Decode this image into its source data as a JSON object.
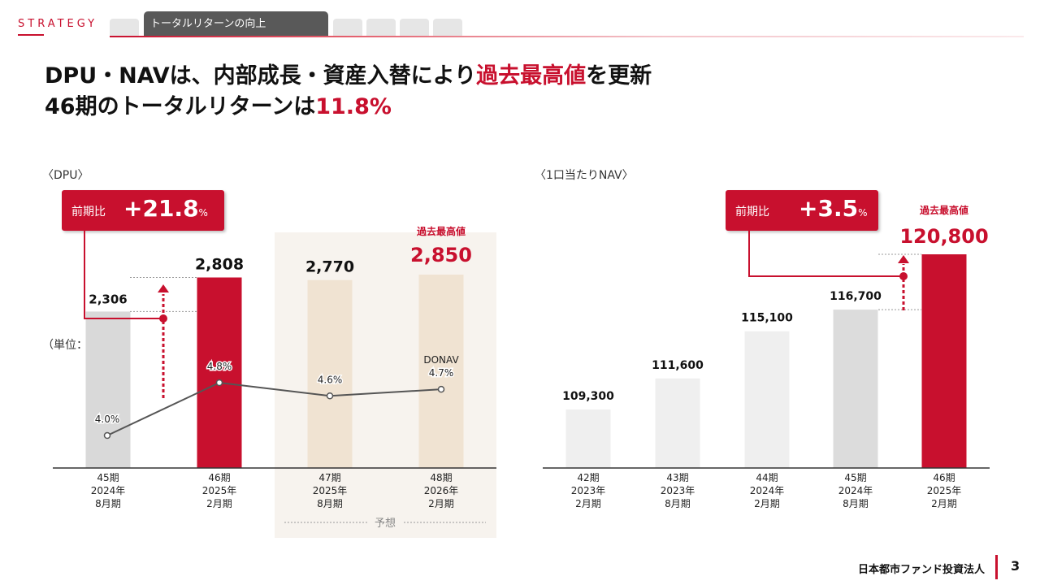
{
  "header": {
    "section": "STRATEGY",
    "active_tab": "トータルリターンの向上"
  },
  "headline": {
    "line1_a": "DPU・NAVは、内部成長・資産入替により",
    "line1_b": "過去最高値",
    "line1_c": "を更新",
    "line2_a": "46期のトータルリターンは",
    "line2_b": "11.8%"
  },
  "dpu_section": {
    "label": "〈DPU〉",
    "unit": "（単位：円）",
    "callout_label": "前期比",
    "callout_value": "+21.8",
    "callout_pct": "%",
    "record_label": "過去最高値",
    "forecast_label": "予想",
    "donav_label": "DONAV"
  },
  "nav_section": {
    "label": "〈1口当たりNAV〉",
    "callout_label": "前期比",
    "callout_value": "+3.5",
    "callout_pct": "%",
    "record_label": "過去最高値"
  },
  "chart_data": [
    {
      "type": "bar",
      "title": "〈DPU〉",
      "unit": "（単位：円）",
      "categories": [
        [
          "45期",
          "2024年",
          "8月期"
        ],
        [
          "46期",
          "2025年",
          "2月期"
        ],
        [
          "47期",
          "2025年",
          "8月期"
        ],
        [
          "48期",
          "2026年",
          "2月期"
        ]
      ],
      "values": [
        2306,
        2808,
        2770,
        2850
      ],
      "value_labels": [
        "2,306",
        "2,808",
        "2,770",
        "2,850"
      ],
      "forecast": [
        false,
        false,
        true,
        true
      ],
      "bar_colors": [
        "#d9d9d9",
        "#c8102e",
        "#f0e3d2",
        "#f0e3d2"
      ],
      "line_series": {
        "values": [
          4.0,
          4.8,
          4.6,
          4.7
        ],
        "labels": [
          "4.0%",
          "4.8%",
          "4.6%",
          "4.7%"
        ],
        "color": "#555555"
      },
      "ylim": [
        0,
        2900
      ]
    },
    {
      "type": "bar",
      "title": "〈1口当たりNAV〉",
      "categories": [
        [
          "42期",
          "2023年",
          "2月期"
        ],
        [
          "43期",
          "2023年",
          "8月期"
        ],
        [
          "44期",
          "2024年",
          "2月期"
        ],
        [
          "45期",
          "2024年",
          "8月期"
        ],
        [
          "46期",
          "2025年",
          "2月期"
        ]
      ],
      "values": [
        109300,
        111600,
        115100,
        116700,
        120800
      ],
      "value_labels": [
        "109,300",
        "111,600",
        "115,100",
        "116,700",
        "120,800"
      ],
      "bar_colors": [
        "#efefef",
        "#efefef",
        "#efefef",
        "#dcdcdc",
        "#c8102e"
      ],
      "ylim": [
        105000,
        121500
      ]
    }
  ],
  "footer": {
    "company": "日本都市ファンド投資法人",
    "page": "3"
  }
}
